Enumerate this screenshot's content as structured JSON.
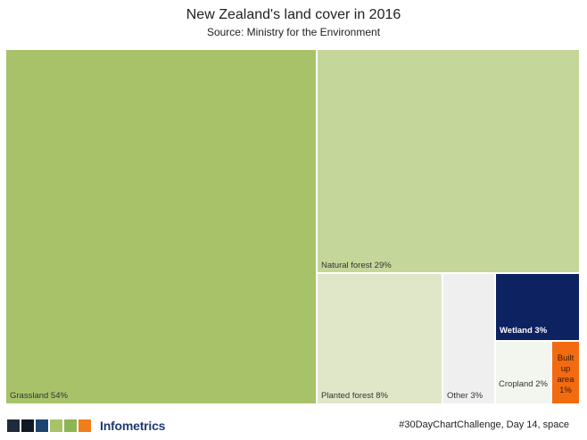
{
  "chart_data": {
    "type": "treemap",
    "title": "New Zealand's land cover in 2016",
    "subtitle": "Source: Ministry for the Environment",
    "unit": "%",
    "items": [
      {
        "name": "Grassland",
        "value": 54,
        "label": "Grassland 54%",
        "color": "#a8c26a"
      },
      {
        "name": "Natural forest",
        "value": 29,
        "label": "Natural forest 29%",
        "color": "#c5d69a"
      },
      {
        "name": "Planted forest",
        "value": 8,
        "label": "Planted forest 8%",
        "color": "#dfe7c8"
      },
      {
        "name": "Other",
        "value": 3,
        "label": "Other 3%",
        "color": "#efefef"
      },
      {
        "name": "Wetland",
        "value": 3,
        "label": "Wetland 3%",
        "color": "#0d2260"
      },
      {
        "name": "Cropland",
        "value": 2,
        "label": "Cropland 2%",
        "color": "#f3f6ee"
      },
      {
        "name": "Built up area",
        "value": 1,
        "label": "Built up area 1%",
        "color": "#f26b11"
      }
    ]
  },
  "footer": {
    "brand": "Infometrics",
    "credit": "#30DayChartChallenge, Day 14, space",
    "swatch_colors": [
      "#1e2b3d",
      "#111827",
      "#1d4370",
      "#a8c26a",
      "#8db553",
      "#f07d1a"
    ]
  }
}
